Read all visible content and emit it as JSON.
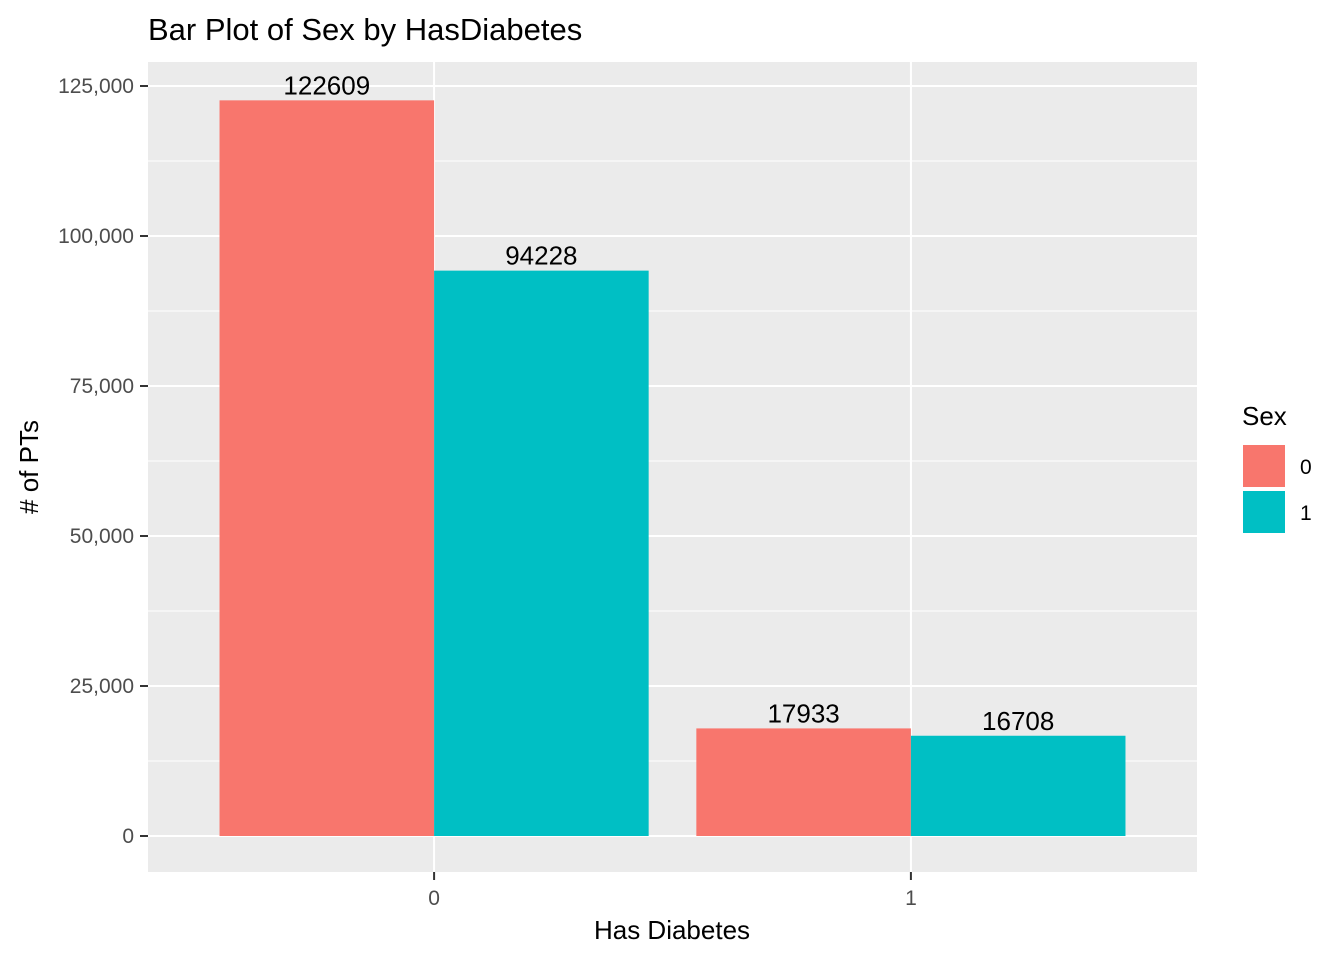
{
  "chart_data": {
    "type": "bar",
    "title": "Bar Plot of Sex by HasDiabetes",
    "xlabel": "Has Diabetes",
    "ylabel": "# of PTs",
    "categories": [
      "0",
      "1"
    ],
    "series": [
      {
        "name": "0",
        "color": "#F8766D",
        "values": [
          122609,
          17933
        ]
      },
      {
        "name": "1",
        "color": "#00BFC4",
        "values": [
          94228,
          16708
        ]
      }
    ],
    "data_labels": [
      [
        "122609",
        "17933"
      ],
      [
        "94228",
        "16708"
      ]
    ],
    "ylim": [
      -6000,
      129000
    ],
    "yticks": [
      0,
      25000,
      50000,
      75000,
      100000,
      125000
    ],
    "ytick_labels": [
      "0",
      "25,000",
      "50,000",
      "75,000",
      "100,000",
      "125,000"
    ],
    "grid": true,
    "panel_background": "#EBEBEB",
    "legend": {
      "title": "Sex",
      "position": "right"
    }
  }
}
